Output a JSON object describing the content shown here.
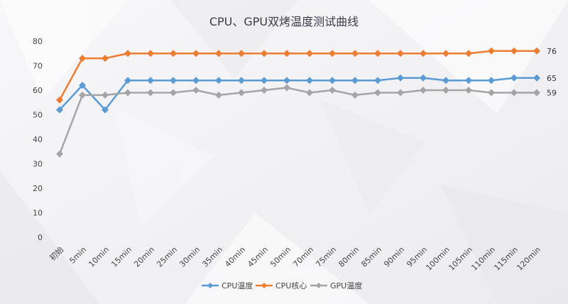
{
  "colors": {
    "cpu_temp": "#5b9bd5",
    "cpu_core": "#ed7d31",
    "gpu_temp": "#a5a5a5",
    "background": "#f2f2f4"
  },
  "chart_data": {
    "type": "line",
    "title": "CPU、GPU双烤温度测试曲线",
    "xlabel": "",
    "ylabel": "",
    "ylim": [
      0,
      80
    ],
    "yticks": [
      0,
      10,
      20,
      30,
      40,
      50,
      60,
      70,
      80
    ],
    "grid": false,
    "legend_position": "bottom",
    "marker": "diamond",
    "categories": [
      "初始",
      "5min",
      "10min",
      "15min",
      "20min",
      "25min",
      "30min",
      "35min",
      "40min",
      "45min",
      "50min",
      "70min",
      "75min",
      "80min",
      "85min",
      "90min",
      "95min",
      "100min",
      "105min",
      "110min",
      "115min",
      "120min"
    ],
    "series": [
      {
        "name": "CPU温度",
        "color_key": "cpu_temp",
        "values": [
          52,
          62,
          52,
          64,
          64,
          64,
          64,
          64,
          64,
          64,
          64,
          64,
          64,
          64,
          64,
          65,
          65,
          64,
          64,
          64,
          65,
          65
        ],
        "end_label": "65"
      },
      {
        "name": "CPU核心",
        "color_key": "cpu_core",
        "values": [
          56,
          73,
          73,
          75,
          75,
          75,
          75,
          75,
          75,
          75,
          75,
          75,
          75,
          75,
          75,
          75,
          75,
          75,
          75,
          76,
          76,
          76
        ],
        "end_label": "76"
      },
      {
        "name": "GPU温度",
        "color_key": "gpu_temp",
        "values": [
          34,
          58,
          58,
          59,
          59,
          59,
          60,
          58,
          59,
          60,
          61,
          59,
          60,
          58,
          59,
          59,
          60,
          60,
          60,
          59,
          59,
          59
        ],
        "end_label": "59"
      }
    ]
  }
}
